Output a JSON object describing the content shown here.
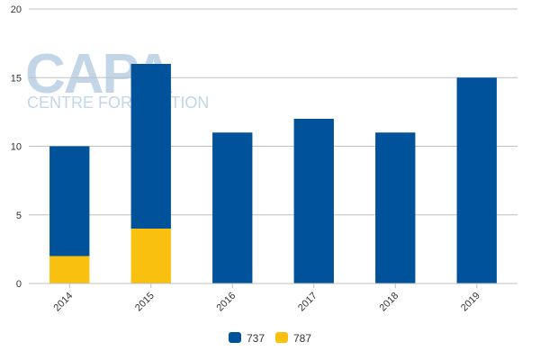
{
  "watermark": {
    "logo_text": "CAPA",
    "tagline": "CENTRE FOR AVIATION"
  },
  "chart_data": {
    "type": "bar",
    "stacked": true,
    "categories": [
      "2014",
      "2015",
      "2016",
      "2017",
      "2018",
      "2019"
    ],
    "series": [
      {
        "name": "787",
        "color": "#f9c010",
        "values": [
          2,
          4,
          0,
          0,
          0,
          0
        ]
      },
      {
        "name": "737",
        "color": "#00529b",
        "values": [
          8,
          12,
          11,
          12,
          11,
          15
        ]
      }
    ],
    "legend_order": [
      "737",
      "787"
    ],
    "legend_position": "bottom",
    "ylim": [
      0,
      20
    ],
    "yticks": [
      0,
      5,
      10,
      15,
      20
    ],
    "grid": true,
    "gridline_color": "#c0c0c0",
    "title": "",
    "xlabel": "",
    "ylabel": ""
  }
}
